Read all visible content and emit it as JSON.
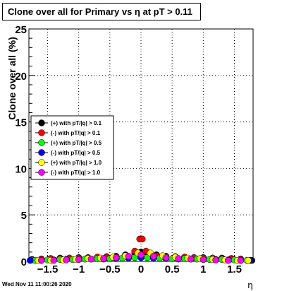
{
  "title": "Clone  over all for Primary vs   η at pT > 0.11",
  "footer": "Wed Nov 11 11:00:26 2020",
  "chart_data": {
    "type": "scatter",
    "title": "Clone  over all for Primary vs   η at pT > 0.11",
    "xlabel": "η",
    "ylabel": "Clone  over all (%)",
    "xlim": [
      -1.8,
      1.8
    ],
    "ylim": [
      0,
      25
    ],
    "xticks": [
      -1.5,
      -1,
      -0.5,
      0,
      0.5,
      1,
      1.5
    ],
    "xtick_labels": [
      "−1.5",
      "−1",
      "−0.5",
      "0",
      "0.5",
      "1",
      "1.5"
    ],
    "yticks": [
      0,
      5,
      10,
      15,
      20,
      25
    ],
    "ytick_labels": [
      "0",
      "5",
      "10",
      "15",
      "20",
      "25"
    ],
    "grid": true,
    "legend_position": "middle-left",
    "series": [
      {
        "name": "(+) with pT/|q| > 0.1",
        "color": "#000000",
        "x": [
          -1.75,
          -1.6,
          -1.45,
          -1.3,
          -1.15,
          -1.0,
          -0.85,
          -0.7,
          -0.55,
          -0.4,
          -0.25,
          -0.1,
          0.0,
          0.1,
          0.25,
          0.4,
          0.55,
          0.7,
          0.85,
          1.0,
          1.15,
          1.3,
          1.45,
          1.6,
          1.78
        ],
        "y": [
          0.2,
          0.25,
          0.3,
          0.35,
          0.35,
          0.4,
          0.4,
          0.45,
          0.5,
          0.55,
          0.7,
          0.9,
          1.0,
          0.9,
          0.7,
          0.55,
          0.5,
          0.45,
          0.4,
          0.4,
          0.35,
          0.35,
          0.3,
          0.25,
          0.1
        ]
      },
      {
        "name": "(-) with pT/|q| > 0.1",
        "color": "#ff0000",
        "x": [
          -1.75,
          -1.6,
          -1.45,
          -1.3,
          -1.15,
          -1.0,
          -0.85,
          -0.7,
          -0.55,
          -0.4,
          -0.25,
          -0.1,
          -0.02,
          0.02,
          0.08,
          0.25,
          0.4,
          0.55,
          0.7,
          0.85,
          1.0,
          1.15,
          1.3,
          1.45,
          1.6
        ],
        "y": [
          0.15,
          0.2,
          0.25,
          0.3,
          0.35,
          0.35,
          0.4,
          0.45,
          0.45,
          0.5,
          0.6,
          1.1,
          2.4,
          2.4,
          1.1,
          0.6,
          0.5,
          0.45,
          0.45,
          0.4,
          0.35,
          0.35,
          0.3,
          0.25,
          0.2
        ]
      },
      {
        "name": "(+) with pT/|q| > 0.5",
        "color": "#00ff00",
        "x": [
          -1.7,
          -1.5,
          -1.3,
          -1.1,
          -0.9,
          -0.7,
          -0.5,
          -0.3,
          -0.1,
          0.1,
          0.3,
          0.5,
          0.7,
          0.9,
          1.1,
          1.3,
          1.5,
          1.7
        ],
        "y": [
          0.1,
          0.15,
          0.2,
          0.2,
          0.25,
          0.3,
          0.3,
          0.35,
          0.4,
          0.4,
          0.35,
          0.3,
          0.3,
          0.25,
          0.2,
          0.2,
          0.15,
          0.1
        ]
      },
      {
        "name": "(-) with pT/|q| > 0.5",
        "color": "#0000ff",
        "x": [
          -1.78,
          -1.6,
          -1.4,
          -1.2,
          -1.0,
          -0.8,
          -0.6,
          -0.4,
          -0.2,
          0.0,
          0.2,
          0.4,
          0.6,
          0.8,
          1.0,
          1.2,
          1.4,
          1.6,
          1.75
        ],
        "y": [
          0.1,
          0.1,
          0.15,
          0.2,
          0.2,
          0.25,
          0.25,
          0.3,
          0.35,
          0.4,
          0.35,
          0.3,
          0.25,
          0.25,
          0.2,
          0.2,
          0.15,
          0.1,
          0.1
        ]
      },
      {
        "name": "(+) with pT/|q| > 1.0",
        "color": "#ffff00",
        "x": [
          -1.65,
          -1.45,
          -1.25,
          -1.05,
          -0.85,
          -0.65,
          -0.45,
          -0.25,
          -0.05,
          0.15,
          0.35,
          0.55,
          0.75,
          0.95,
          1.15,
          1.35,
          1.55,
          1.72
        ],
        "y": [
          0.1,
          0.1,
          0.15,
          0.2,
          0.3,
          0.35,
          0.45,
          0.6,
          0.9,
          0.9,
          0.6,
          0.45,
          0.35,
          0.3,
          0.2,
          0.15,
          0.1,
          0.1
        ]
      },
      {
        "name": "(-) with pT/|q| > 1.0",
        "color": "#ff00ff",
        "x": [
          -1.6,
          -1.4,
          -1.2,
          -1.0,
          -0.8,
          -0.6,
          -0.4,
          -0.2,
          0.0,
          0.2,
          0.4,
          0.6,
          0.8,
          1.0,
          1.2,
          1.4,
          1.6
        ],
        "y": [
          0.1,
          0.1,
          0.15,
          0.2,
          0.25,
          0.3,
          0.4,
          0.55,
          0.7,
          0.55,
          0.4,
          0.3,
          0.25,
          0.2,
          0.15,
          0.1,
          0.1
        ]
      }
    ]
  }
}
